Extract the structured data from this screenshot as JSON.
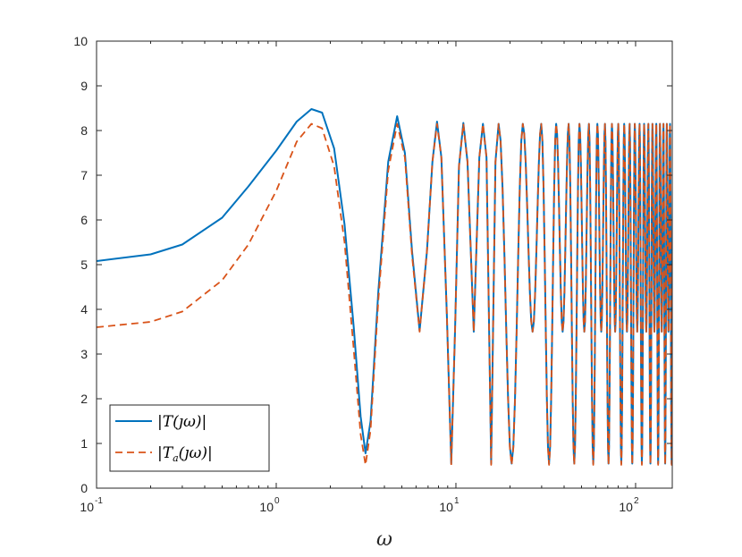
{
  "chart_data": {
    "type": "line",
    "title": "",
    "xlabel": "ω",
    "ylabel": "",
    "xscale": "log",
    "xlim": [
      0.1,
      160
    ],
    "ylim": [
      0,
      10
    ],
    "x_ticks": [
      {
        "value": 0.1,
        "base": "10",
        "exp": "-1"
      },
      {
        "value": 1,
        "base": "10",
        "exp": "0"
      },
      {
        "value": 10,
        "base": "10",
        "exp": "1"
      },
      {
        "value": 100,
        "base": "10",
        "exp": "2"
      }
    ],
    "y_ticks": [
      0,
      1,
      2,
      3,
      4,
      5,
      6,
      7,
      8,
      9,
      10
    ],
    "grid": false,
    "legend_position": "bottom-left",
    "series": [
      {
        "name_pre": "|T(",
        "name_sub": "",
        "name_post": "ȷω)|",
        "style": "solid",
        "color": "#0072BD",
        "points": [
          [
            0.1,
            5.08
          ],
          [
            0.2,
            5.23
          ],
          [
            0.3,
            5.45
          ],
          [
            0.5,
            6.05
          ],
          [
            0.7,
            6.75
          ],
          [
            1.0,
            7.55
          ],
          [
            1.3,
            8.2
          ],
          [
            1.57,
            8.48
          ],
          [
            1.8,
            8.4
          ],
          [
            2.1,
            7.6
          ],
          [
            2.4,
            5.9
          ],
          [
            2.7,
            3.6
          ],
          [
            2.95,
            1.6
          ],
          [
            3.14,
            0.78
          ],
          [
            3.35,
            1.5
          ],
          [
            3.7,
            4.4
          ],
          [
            4.2,
            7.3
          ],
          [
            4.71,
            8.32
          ],
          [
            5.2,
            7.5
          ],
          [
            5.7,
            5.3
          ],
          [
            6.28,
            3.52
          ],
          [
            6.9,
            5.3
          ],
          [
            7.4,
            7.3
          ],
          [
            7.85,
            8.2
          ],
          [
            8.3,
            7.4
          ],
          [
            8.9,
            3.9
          ],
          [
            9.42,
            0.55
          ],
          [
            9.9,
            3.6
          ],
          [
            10.4,
            7.2
          ],
          [
            11.0,
            8.17
          ],
          [
            11.6,
            7.3
          ],
          [
            12.57,
            3.5
          ],
          [
            13.5,
            7.4
          ],
          [
            14.14,
            8.15
          ],
          [
            14.8,
            7.4
          ],
          [
            15.71,
            0.55
          ],
          [
            16.6,
            7.3
          ],
          [
            17.28,
            8.15
          ]
        ],
        "oscillation": {
          "start": 17.28,
          "peak_period": 6.283,
          "max": 8.15,
          "minima_odd": 0.55,
          "minima_even": 3.5
        }
      },
      {
        "name_pre": "|T",
        "name_sub": "a",
        "name_post": "(ȷω)|",
        "style": "dashed",
        "color": "#D95319",
        "points": [
          [
            0.1,
            3.6
          ],
          [
            0.2,
            3.72
          ],
          [
            0.3,
            3.95
          ],
          [
            0.5,
            4.65
          ],
          [
            0.7,
            5.45
          ],
          [
            1.0,
            6.65
          ],
          [
            1.3,
            7.75
          ],
          [
            1.57,
            8.15
          ],
          [
            1.8,
            8.05
          ],
          [
            2.1,
            7.2
          ],
          [
            2.4,
            5.5
          ],
          [
            2.7,
            3.1
          ],
          [
            2.95,
            1.2
          ],
          [
            3.14,
            0.52
          ],
          [
            3.35,
            1.3
          ],
          [
            3.7,
            4.2
          ],
          [
            4.2,
            7.1
          ],
          [
            4.71,
            8.15
          ],
          [
            5.2,
            7.4
          ],
          [
            5.7,
            5.2
          ],
          [
            6.28,
            3.5
          ],
          [
            6.9,
            5.3
          ],
          [
            7.4,
            7.3
          ],
          [
            7.85,
            8.15
          ],
          [
            8.3,
            7.4
          ],
          [
            8.9,
            3.9
          ],
          [
            9.42,
            0.52
          ],
          [
            9.9,
            3.6
          ],
          [
            10.4,
            7.2
          ],
          [
            11.0,
            8.15
          ],
          [
            11.6,
            7.3
          ],
          [
            12.57,
            3.5
          ],
          [
            13.5,
            7.4
          ],
          [
            14.14,
            8.15
          ],
          [
            14.8,
            7.4
          ],
          [
            15.71,
            0.52
          ],
          [
            16.6,
            7.3
          ],
          [
            17.28,
            8.15
          ]
        ],
        "oscillation": {
          "start": 17.28,
          "peak_period": 6.283,
          "max": 8.15,
          "minima_odd": 0.52,
          "minima_even": 3.5
        }
      }
    ]
  }
}
